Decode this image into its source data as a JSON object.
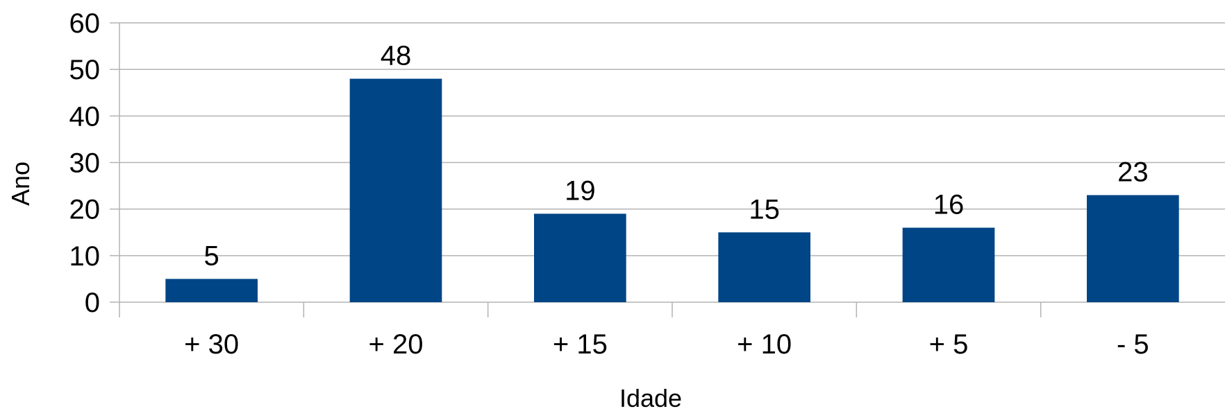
{
  "chart_data": {
    "type": "bar",
    "categories": [
      "+ 30",
      "+ 20",
      "+ 15",
      "+ 10",
      "+ 5",
      "- 5"
    ],
    "values": [
      5,
      48,
      19,
      15,
      16,
      23
    ],
    "data_labels": [
      "5",
      "48",
      "19",
      "15",
      "16",
      "23"
    ],
    "y_ticks": [
      0,
      10,
      20,
      30,
      40,
      50,
      60
    ],
    "ylim": [
      0,
      60
    ],
    "title": "",
    "xlabel": "Idade",
    "ylabel": "Ano",
    "grid": true,
    "legend": "none",
    "colors": {
      "bar": "#004586",
      "grid": "#b3b3b3"
    }
  }
}
